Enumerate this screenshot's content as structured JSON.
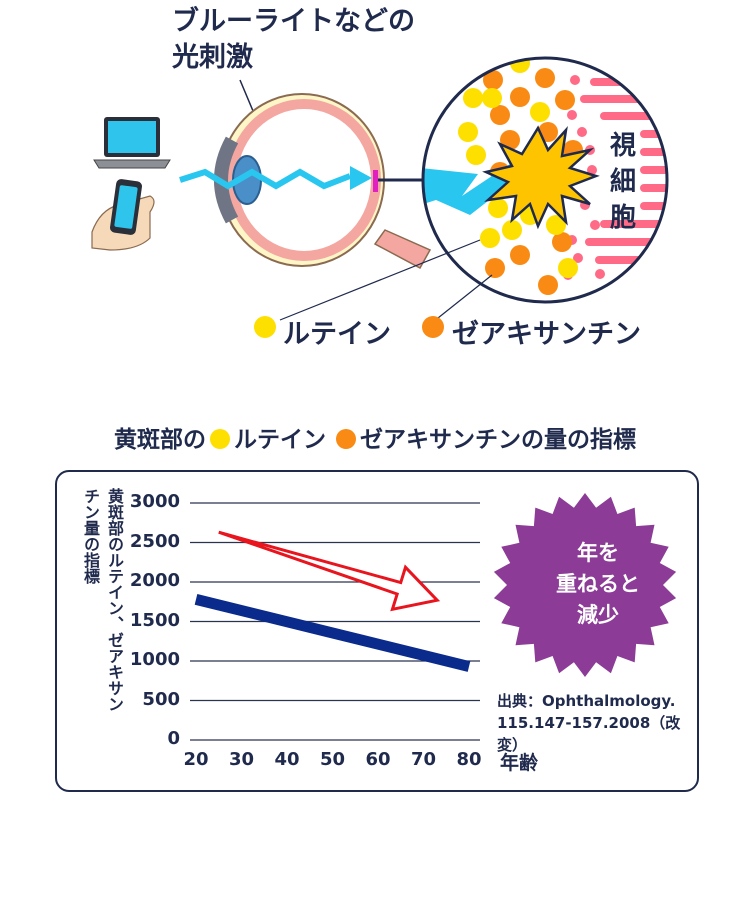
{
  "illustration": {
    "title_line1": "ブルーライトなどの",
    "title_line2": "光刺激",
    "cells_label": "視細胞",
    "legend": [
      {
        "label": "ルテイン",
        "color": "#fde000"
      },
      {
        "label": "ゼアキサンチン",
        "color": "#f98b14"
      }
    ]
  },
  "chart_section": {
    "title_part1": "黄斑部の",
    "title_part2": "ルテイン",
    "title_part3": "ゼアキサンチンの量の指標",
    "ylabel": "黄斑部のルテイン、ゼアキサンチン量の指標",
    "xlabel": "年齢",
    "badge_line1": "年を",
    "badge_line2": "重ねると",
    "badge_line3": "減少",
    "source_line1": "出典：Ophthalmology.",
    "source_line2": "115.147-157.2008（改変）"
  },
  "chart_data": {
    "type": "line",
    "title": "黄斑部のルテイン ゼアキサンチンの量の指標",
    "xlabel": "年齢",
    "ylabel": "黄斑部のルテイン、ゼアキサンチン量の指標",
    "x_ticks": [
      20,
      30,
      40,
      50,
      60,
      70,
      80
    ],
    "y_ticks": [
      0,
      500,
      1000,
      1500,
      2000,
      2500,
      3000
    ],
    "xlim": [
      20,
      80
    ],
    "ylim": [
      0,
      3000
    ],
    "grid": "horizontal",
    "series": [
      {
        "color": "#0a2a8c",
        "x": [
          20,
          80
        ],
        "y": [
          1780,
          930
        ]
      }
    ],
    "trend_arrow": {
      "color": "#e8141e",
      "from": [
        25,
        2630
      ],
      "to": [
        73,
        1770
      ]
    }
  },
  "colors": {
    "navy": "#1f2a4d",
    "badge": "#8c3b96",
    "lutein": "#fde000",
    "zeaxanthin": "#f98b14",
    "light_blue": "#29c6f0",
    "cell_pink": "#ff6b86"
  }
}
